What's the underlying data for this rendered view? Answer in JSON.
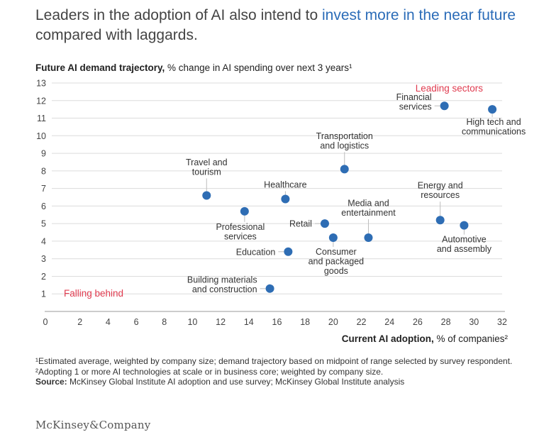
{
  "header": {
    "title_part1": "Leaders in the adoption of AI also intend to ",
    "title_highlight": "invest more in the near future",
    "title_part2": " compared with laggards."
  },
  "chart_data": {
    "type": "scatter",
    "ylabel_bold": "Future AI demand trajectory,",
    "ylabel_rest": " % change in AI spending over next 3 years¹",
    "xlabel_bold": "Current AI adoption,",
    "xlabel_rest": " % of companies²",
    "xlim": [
      0,
      32
    ],
    "ylim": [
      0,
      13
    ],
    "x_ticks": [
      "0",
      "2",
      "4",
      "6",
      "8",
      "10",
      "12",
      "14",
      "16",
      "18",
      "20",
      "22",
      "24",
      "26",
      "28",
      "30",
      "32"
    ],
    "y_ticks": [
      "1",
      "2",
      "3",
      "4",
      "5",
      "6",
      "7",
      "8",
      "9",
      "10",
      "11",
      "12",
      "13"
    ],
    "grid": "horizontal",
    "marker_color": "#2e6db4",
    "annotations": [
      {
        "text": "Leading sectors",
        "color": "#e03b4f"
      },
      {
        "text": "Falling behind",
        "color": "#e03b4f"
      }
    ],
    "points": [
      {
        "label": [
          "Financial",
          "services"
        ],
        "x": 27.9,
        "y": 11.7
      },
      {
        "label": [
          "High tech and",
          "communications"
        ],
        "x": 31.3,
        "y": 11.5
      },
      {
        "label": [
          "Transportation",
          "and logistics"
        ],
        "x": 20.8,
        "y": 8.1
      },
      {
        "label": [
          "Travel and",
          "tourism"
        ],
        "x": 11.0,
        "y": 6.6
      },
      {
        "label": [
          "Healthcare"
        ],
        "x": 16.6,
        "y": 6.4
      },
      {
        "label": [
          "Professional",
          "services"
        ],
        "x": 13.7,
        "y": 5.7
      },
      {
        "label": [
          "Retail"
        ],
        "x": 19.4,
        "y": 5.0
      },
      {
        "label": [
          "Media and",
          "entertainment"
        ],
        "x": 22.5,
        "y": 4.2
      },
      {
        "label": [
          "Consumer",
          "and packaged",
          "goods"
        ],
        "x": 20.0,
        "y": 4.2
      },
      {
        "label": [
          "Education"
        ],
        "x": 16.8,
        "y": 3.4
      },
      {
        "label": [
          "Energy and",
          "resources"
        ],
        "x": 27.6,
        "y": 5.2
      },
      {
        "label": [
          "Automotive",
          "and assembly"
        ],
        "x": 29.3,
        "y": 4.9
      },
      {
        "label": [
          "Building materials",
          "and construction"
        ],
        "x": 15.5,
        "y": 1.3
      }
    ]
  },
  "footnotes": {
    "note1": "¹Estimated average, weighted by company size; demand trajectory based on midpoint of range selected by survey respondent.",
    "note2": "²Adopting 1 or more AI technologies at scale or in business core; weighted by company size.",
    "source_bold": "Source:",
    "source_rest": " McKinsey Global Institute AI adoption and use survey; McKinsey Global Institute analysis"
  },
  "brand": {
    "logo_text": "McKinsey&Company"
  }
}
